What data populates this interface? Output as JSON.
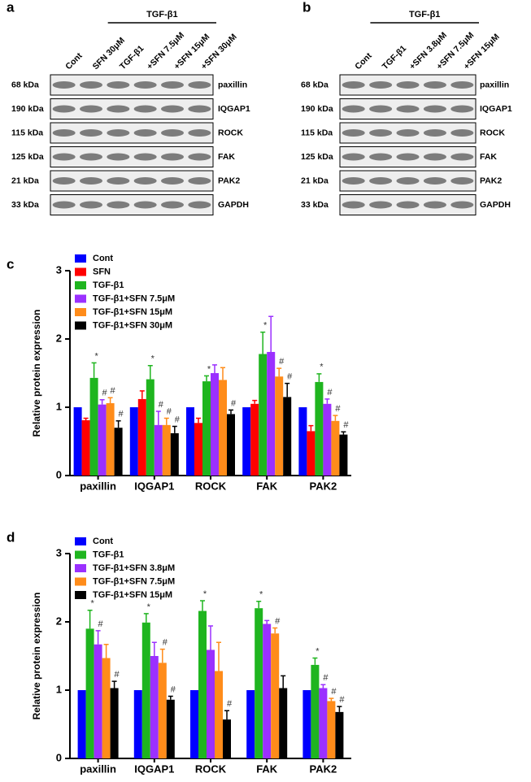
{
  "blots": [
    {
      "label": "a",
      "header": "TGF-β1",
      "lanes": [
        "Cont",
        "SFN 30μM",
        "TGF-β1",
        "+SFN 7.5μM",
        "+SFN 15μM",
        "+SFN 30μM"
      ],
      "rows": [
        {
          "kda": "68 kDa",
          "protein": "paxillin"
        },
        {
          "kda": "190 kDa",
          "protein": "IQGAP1"
        },
        {
          "kda": "115 kDa",
          "protein": "ROCK"
        },
        {
          "kda": "125 kDa",
          "protein": "FAK"
        },
        {
          "kda": "21 kDa",
          "protein": "PAK2"
        },
        {
          "kda": "33 kDa",
          "protein": "GAPDH"
        }
      ]
    },
    {
      "label": "b",
      "header": "TGF-β1",
      "lanes": [
        "Cont",
        "TGF-β1",
        "+SFN 3.8μM",
        "+SFN 7.5μM",
        "+SFN 15μM"
      ],
      "rows": [
        {
          "kda": "68 kDa",
          "protein": "paxillin"
        },
        {
          "kda": "190 kDa",
          "protein": "IQGAP1"
        },
        {
          "kda": "115 kDa",
          "protein": "ROCK"
        },
        {
          "kda": "125 kDa",
          "protein": "FAK"
        },
        {
          "kda": "21 kDa",
          "protein": "PAK2"
        },
        {
          "kda": "33 kDa",
          "protein": "GAPDH"
        }
      ]
    }
  ],
  "chart_data": [
    {
      "type": "bar",
      "panel_label": "c",
      "y_label": "Relative protein expression",
      "categories": [
        "paxillin",
        "IQGAP1",
        "ROCK",
        "FAK",
        "PAK2"
      ],
      "ylim": [
        0,
        3
      ],
      "yticks": [
        0,
        1,
        2,
        3
      ],
      "series": [
        {
          "name": "Cont",
          "color": "#0000ff",
          "values": [
            1,
            1,
            1,
            1,
            1
          ]
        },
        {
          "name": "SFN",
          "color": "#ff0000",
          "values": [
            0.81,
            1.12,
            0.77,
            1.05,
            0.65
          ],
          "errors": [
            0.03,
            0.12,
            0.07,
            0.05,
            0.08
          ]
        },
        {
          "name": "TGF-β1",
          "color": "#1fb51f",
          "values": [
            1.43,
            1.41,
            1.38,
            1.78,
            1.37
          ],
          "errors": [
            0.22,
            0.2,
            0.08,
            0.32,
            0.12
          ],
          "annotations": [
            "*",
            "*",
            "*",
            "*",
            "*"
          ]
        },
        {
          "name": "TGF-β1+SFN 7.5μM",
          "color": "#9b30ff",
          "values": [
            1.04,
            0.74,
            1.5,
            1.81,
            1.05
          ],
          "errors": [
            0.07,
            0.2,
            0.12,
            0.52,
            0.07
          ],
          "annotations": [
            "#",
            "#",
            null,
            null,
            "#"
          ]
        },
        {
          "name": "TGF-β1+SFN 15μM",
          "color": "#ff8c1a",
          "values": [
            1.06,
            0.74,
            1.4,
            1.45,
            0.8
          ],
          "errors": [
            0.08,
            0.1,
            0.18,
            0.12,
            0.08
          ],
          "annotations": [
            "#",
            "#",
            null,
            "#",
            "#"
          ]
        },
        {
          "name": "TGF-β1+SFN 30μM",
          "color": "#000000",
          "values": [
            0.7,
            0.62,
            0.9,
            1.15,
            0.6
          ],
          "errors": [
            0.1,
            0.1,
            0.06,
            0.2,
            0.04
          ],
          "annotations": [
            "#",
            "#",
            "#",
            "#",
            "#"
          ]
        }
      ]
    },
    {
      "type": "bar",
      "panel_label": "d",
      "y_label": "Relative protein expression",
      "categories": [
        "paxillin",
        "IQGAP1",
        "ROCK",
        "FAK",
        "PAK2"
      ],
      "ylim": [
        0,
        3
      ],
      "yticks": [
        0,
        1,
        2,
        3
      ],
      "series": [
        {
          "name": "Cont",
          "color": "#0000ff",
          "values": [
            1,
            1,
            1,
            1,
            1
          ]
        },
        {
          "name": "TGF-β1",
          "color": "#1fb51f",
          "values": [
            1.9,
            1.99,
            2.16,
            2.2,
            1.37
          ],
          "errors": [
            0.27,
            0.13,
            0.15,
            0.1,
            0.1
          ],
          "annotations": [
            "*",
            "*",
            "*",
            "*",
            "*"
          ]
        },
        {
          "name": "TGF-β1+SFN 3.8μM",
          "color": "#9b30ff",
          "values": [
            1.67,
            1.5,
            1.59,
            1.97,
            1.03
          ],
          "errors": [
            0.2,
            0.2,
            0.35,
            0.05,
            0.05
          ],
          "annotations": [
            "#",
            null,
            null,
            null,
            "#"
          ]
        },
        {
          "name": "TGF-β1+SFN 7.5μM",
          "color": "#ff8c1a",
          "values": [
            1.47,
            1.4,
            1.28,
            1.83,
            0.84
          ],
          "errors": [
            0.2,
            0.2,
            0.42,
            0.08,
            0.04
          ],
          "annotations": [
            null,
            "#",
            null,
            "#",
            "#"
          ]
        },
        {
          "name": "TGF-β1+SFN 15μM",
          "color": "#000000",
          "values": [
            1.03,
            0.86,
            0.57,
            1.03,
            0.68
          ],
          "errors": [
            0.1,
            0.05,
            0.13,
            0.18,
            0.08
          ],
          "annotations": [
            "#",
            "#",
            "#",
            null,
            "#"
          ]
        }
      ]
    }
  ]
}
